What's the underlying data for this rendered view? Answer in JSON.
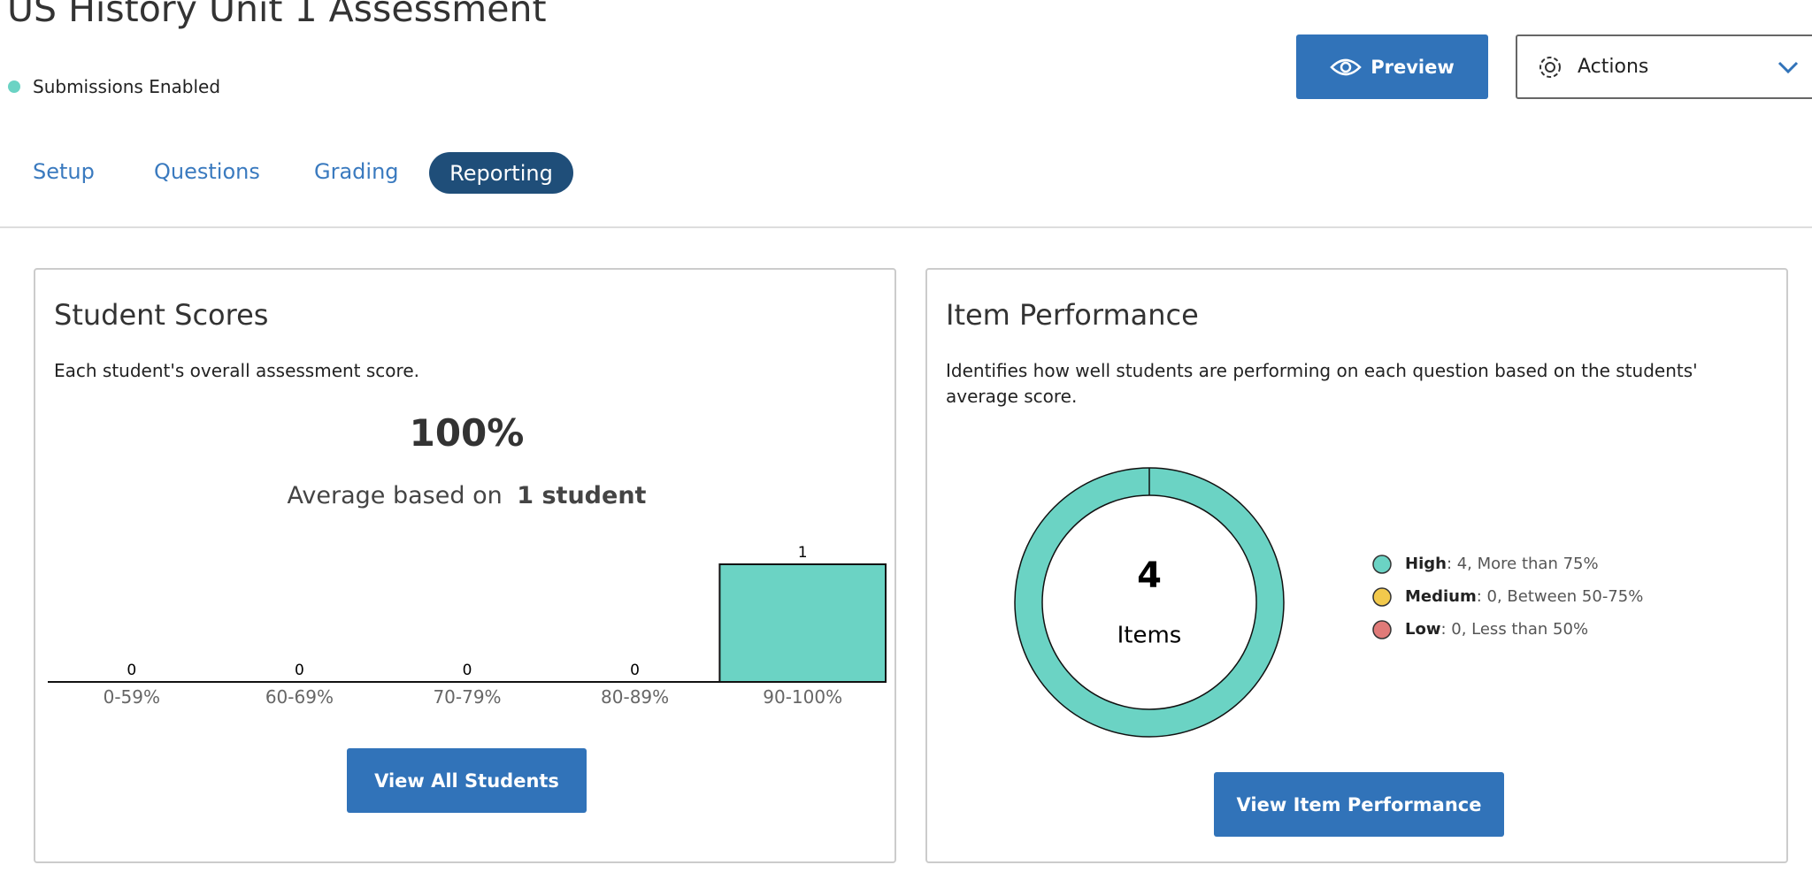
{
  "header": {
    "title": "US History Unit 1 Assessment",
    "status": "Submissions Enabled",
    "preview_button": "Preview",
    "actions_button": "Actions"
  },
  "tabs": [
    "Setup",
    "Questions",
    "Grading",
    "Reporting"
  ],
  "student_scores": {
    "title": "Student Scores",
    "description": "Each student's overall assessment score.",
    "average": "100%",
    "average_text": "Average based on",
    "average_basis": "1 student",
    "chart_data": {
      "type": "bar",
      "categories": [
        "0-59%",
        "60-69%",
        "70-79%",
        "80-89%",
        "90-100%"
      ],
      "values": [
        0,
        0,
        0,
        0,
        1
      ],
      "color": "#6bd3c4"
    },
    "button": "View All Students"
  },
  "item_performance": {
    "title": "Item Performance",
    "description": "Identifies how well students are performing on each question based on the students' average score.",
    "chart_data": {
      "type": "donut",
      "categories": [
        "High",
        "Medium",
        "Low"
      ],
      "values": [
        4,
        0,
        0
      ],
      "value_labels": [
        ": 4, More than 75%",
        ": 0, Between 50-75%",
        ": 0, Less than 50%"
      ],
      "colors": [
        "#6bd3c4",
        "#f2c94c",
        "#e07a78"
      ],
      "center_value": 4,
      "center_label": "Items"
    },
    "button": "View Item Performance"
  }
}
